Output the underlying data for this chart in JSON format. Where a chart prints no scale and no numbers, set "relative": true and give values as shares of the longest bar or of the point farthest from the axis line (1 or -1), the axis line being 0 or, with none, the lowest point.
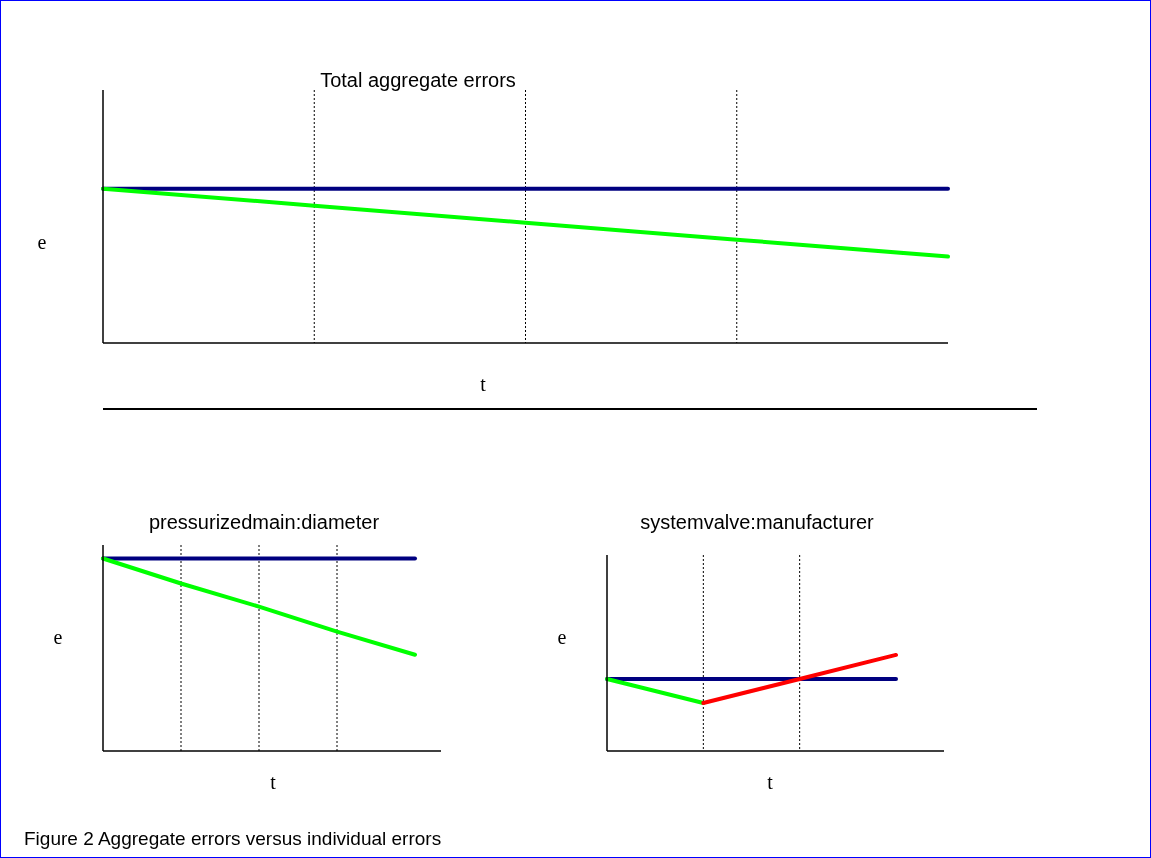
{
  "chart_data": [
    {
      "type": "line",
      "title": "Total aggregate errors",
      "xlabel": "t",
      "ylabel": "e",
      "relative": true,
      "categories": [
        null,
        null,
        null,
        null,
        null
      ],
      "grid": "x",
      "marker": "none",
      "line_style": "solid",
      "series": [
        {
          "color": "#000080",
          "values": [
            1,
            1,
            1,
            1,
            1
          ]
        },
        {
          "color": "#00ff00",
          "values": [
            1,
            0.89,
            0.78,
            0.67,
            0.56
          ]
        }
      ]
    },
    {
      "type": "line",
      "title": "pressurizedmain:diameter",
      "xlabel": "t",
      "ylabel": "e",
      "relative": true,
      "categories": [
        null,
        null,
        null,
        null,
        null
      ],
      "grid": "x",
      "marker": "none",
      "line_style": "solid",
      "series": [
        {
          "color": "#000080",
          "values": [
            1,
            1,
            1,
            1,
            1
          ]
        },
        {
          "color": "#00ff00",
          "values": [
            1,
            0.87,
            0.75,
            0.62,
            0.5
          ]
        }
      ]
    },
    {
      "type": "line",
      "title": "systemvalve:manufacturer",
      "xlabel": "t",
      "ylabel": "e",
      "relative": true,
      "categories": [
        null,
        null,
        null,
        null
      ],
      "grid": "x",
      "marker": "none",
      "line_style": "solid",
      "annotations": [
        "Figure 2 Aggregate errors versus individual errors"
      ],
      "series": [
        {
          "color": "#000080",
          "values": [
            0.75,
            0.75,
            0.75,
            0.75
          ]
        },
        {
          "color": "#00ff00",
          "values": [
            0.75,
            0.5,
            null,
            null
          ]
        },
        {
          "color": "#ff0000",
          "values": [
            null,
            0.5,
            0.75,
            1
          ]
        }
      ]
    }
  ]
}
